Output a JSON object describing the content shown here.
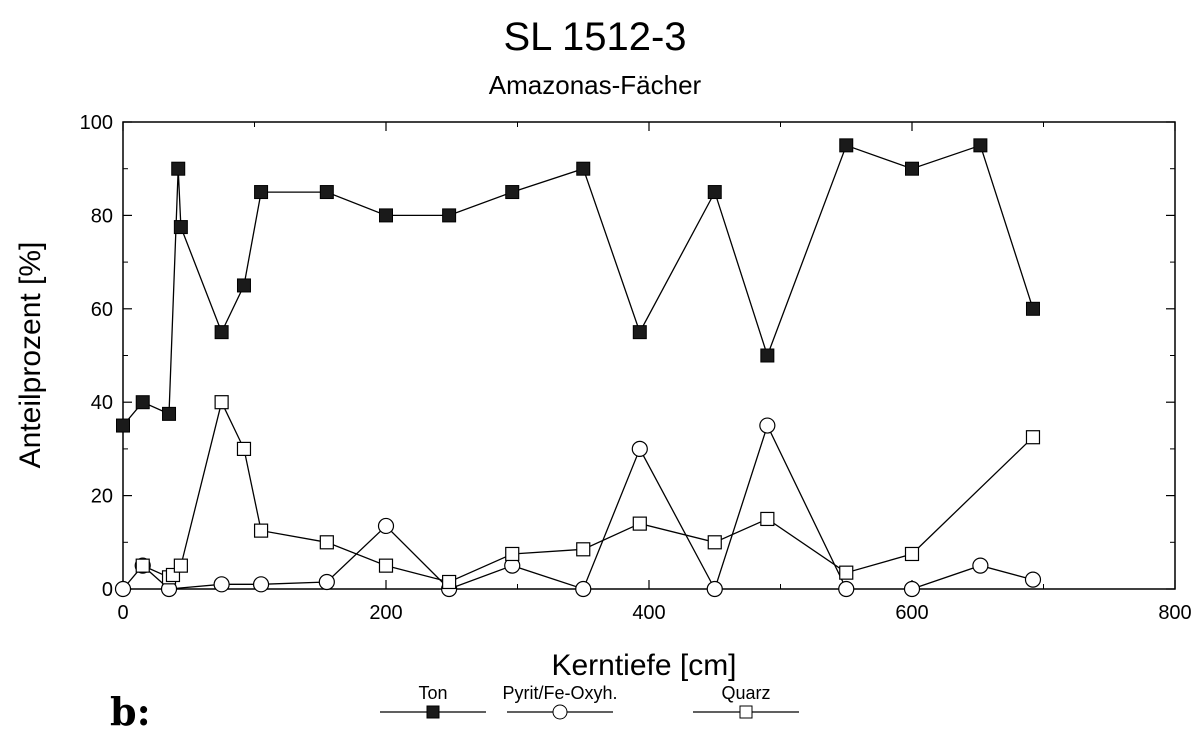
{
  "chart_data": {
    "type": "line",
    "title": "SL 1512-3",
    "subtitle": "Amazonas-Fächer",
    "xlabel": "Kerntiefe [cm]",
    "ylabel": "Anteilprozent [%]",
    "xlim": [
      0,
      800
    ],
    "ylim": [
      0,
      100
    ],
    "xticks": [
      "0",
      "200",
      "400",
      "600",
      "800"
    ],
    "yticks": [
      "0",
      "20",
      "40",
      "60",
      "80",
      "100"
    ],
    "panel_label": "b:",
    "legend_placement": "bottom",
    "series": [
      {
        "name": "Ton",
        "marker": "filled-square",
        "points": [
          [
            0,
            35
          ],
          [
            15,
            40
          ],
          [
            35,
            37.5
          ],
          [
            42,
            90
          ],
          [
            44,
            77.5
          ],
          [
            75,
            55
          ],
          [
            92,
            65
          ],
          [
            105,
            85
          ],
          [
            155,
            85
          ],
          [
            200,
            80
          ],
          [
            248,
            80
          ],
          [
            296,
            85
          ],
          [
            350,
            90
          ],
          [
            393,
            55
          ],
          [
            450,
            85
          ],
          [
            490,
            50
          ],
          [
            550,
            95
          ],
          [
            600,
            90
          ],
          [
            652,
            95
          ],
          [
            692,
            60
          ]
        ]
      },
      {
        "name": "Pyrit/Fe-Oxyh.",
        "marker": "open-circle",
        "segments": [
          [
            [
              0,
              0
            ],
            [
              15,
              5
            ],
            [
              35,
              0
            ],
            [
              75,
              1
            ],
            [
              105,
              1
            ],
            [
              155,
              1.5
            ],
            [
              200,
              13.5
            ],
            [
              248,
              0
            ],
            [
              296,
              5
            ],
            [
              350,
              0
            ],
            [
              393,
              30
            ],
            [
              450,
              0
            ],
            [
              490,
              35
            ],
            [
              550,
              0
            ]
          ],
          [
            [
              600,
              0
            ],
            [
              652,
              5
            ],
            [
              692,
              2
            ]
          ]
        ]
      },
      {
        "name": "Quarz",
        "marker": "open-square",
        "points": [
          [
            15,
            5
          ],
          [
            35,
            2.5
          ],
          [
            38,
            3
          ],
          [
            44,
            5
          ],
          [
            75,
            40
          ],
          [
            92,
            30
          ],
          [
            105,
            12.5
          ],
          [
            155,
            10
          ],
          [
            200,
            5
          ],
          [
            248,
            1.5
          ],
          [
            296,
            7.5
          ],
          [
            350,
            8.5
          ],
          [
            393,
            14
          ],
          [
            450,
            10
          ],
          [
            490,
            15
          ],
          [
            550,
            3.5
          ],
          [
            600,
            7.5
          ],
          [
            692,
            32.5
          ]
        ]
      }
    ]
  }
}
